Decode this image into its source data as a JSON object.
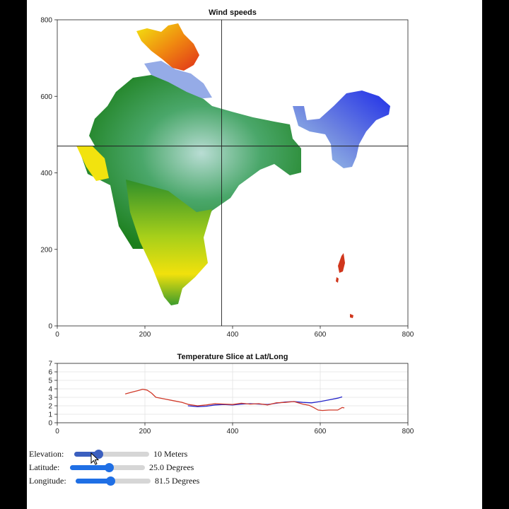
{
  "colors": {
    "slider_active": "#1f6fe5",
    "slider_dark": "#3b5fbf",
    "series_blue": "#2323c8",
    "series_red": "#d03a2a"
  },
  "chart_data": [
    {
      "type": "heatmap",
      "title": "Wind speeds",
      "xlim": [
        0,
        800
      ],
      "ylim": [
        0,
        800
      ],
      "xticks": [
        0,
        200,
        400,
        600,
        800
      ],
      "yticks": [
        0,
        200,
        400,
        600,
        800
      ],
      "crosshair": {
        "x": 375,
        "y": 470
      },
      "grid": false
    },
    {
      "type": "line",
      "title": "Temperature Slice at Lat/Long",
      "xlim": [
        0,
        800
      ],
      "ylim": [
        0,
        7
      ],
      "xticks": [
        0,
        200,
        400,
        600,
        800
      ],
      "yticks": [
        0,
        1,
        2,
        3,
        4,
        5,
        6,
        7
      ],
      "grid": true,
      "series": [
        {
          "color": "#2323c8",
          "x": [
            298,
            320,
            340,
            360,
            380,
            400,
            420,
            440,
            460,
            480,
            500,
            520,
            540,
            560,
            580,
            600,
            620,
            640,
            650
          ],
          "y": [
            2.0,
            1.9,
            1.95,
            2.1,
            2.15,
            2.1,
            2.2,
            2.25,
            2.2,
            2.15,
            2.3,
            2.45,
            2.5,
            2.4,
            2.35,
            2.5,
            2.7,
            2.9,
            3.05
          ]
        },
        {
          "color": "#d03a2a",
          "x": [
            155,
            170,
            185,
            195,
            205,
            215,
            225,
            245,
            265,
            285,
            300,
            320,
            340,
            360,
            380,
            400,
            420,
            440,
            460,
            480,
            500,
            520,
            540,
            560,
            575,
            585,
            595,
            605,
            620,
            640,
            650,
            655
          ],
          "y": [
            3.4,
            3.6,
            3.8,
            3.95,
            3.85,
            3.5,
            3.0,
            2.8,
            2.6,
            2.4,
            2.15,
            2.0,
            2.1,
            2.25,
            2.2,
            2.15,
            2.3,
            2.2,
            2.25,
            2.1,
            2.35,
            2.4,
            2.5,
            2.2,
            2.05,
            1.8,
            1.5,
            1.45,
            1.5,
            1.5,
            1.8,
            1.75
          ]
        }
      ]
    }
  ],
  "controls": [
    {
      "label": "Elevation:",
      "value_text": "10 Meters",
      "fraction": 0.32,
      "dark": true
    },
    {
      "label": "Latitude:",
      "value_text": "25.0 Degrees",
      "fraction": 0.52,
      "dark": false
    },
    {
      "label": "Longitude:",
      "value_text": "81.5 Degrees",
      "fraction": 0.46,
      "dark": false
    }
  ]
}
